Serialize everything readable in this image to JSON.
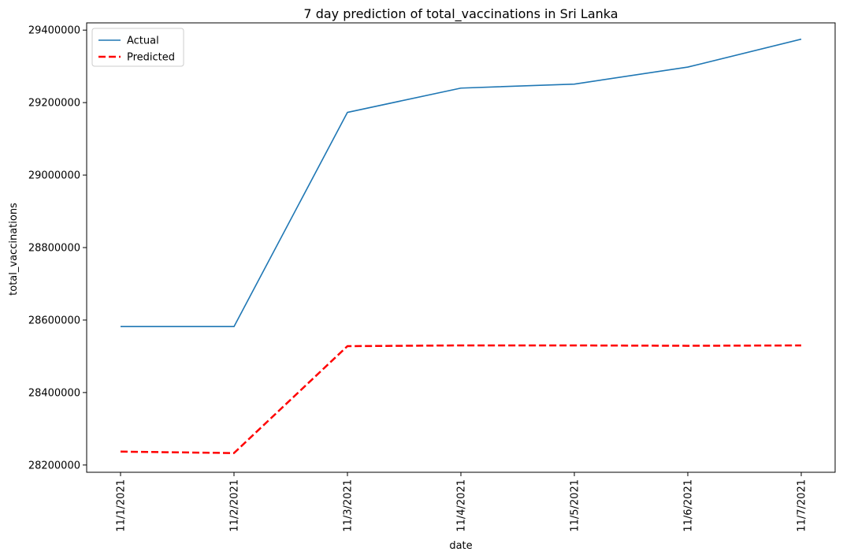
{
  "chart_data": {
    "type": "line",
    "title": "7 day prediction of total_vaccinations in Sri Lanka",
    "xlabel": "date",
    "ylabel": "total_vaccinations",
    "categories": [
      "11/1/2021",
      "11/2/2021",
      "11/3/2021",
      "11/4/2021",
      "11/5/2021",
      "11/6/2021",
      "11/7/2021"
    ],
    "ylim": [
      28180000,
      29420000
    ],
    "yticks": [
      28200000,
      28400000,
      28600000,
      28800000,
      29000000,
      29200000,
      29400000
    ],
    "ytick_labels": [
      "28200000",
      "28400000",
      "28600000",
      "28800000",
      "29000000",
      "29200000",
      "29400000"
    ],
    "grid": false,
    "legend_position": "top-left",
    "series": [
      {
        "name": "Actual",
        "color": "#1f77b4",
        "style": "solid",
        "values": [
          28582000,
          28582000,
          29173000,
          29240000,
          29251000,
          29298000,
          29375000
        ]
      },
      {
        "name": "Predicted",
        "color": "#ff0000",
        "style": "dashed",
        "values": [
          28237000,
          28233000,
          28528000,
          28530000,
          28530000,
          28529000,
          28530000
        ]
      }
    ]
  }
}
